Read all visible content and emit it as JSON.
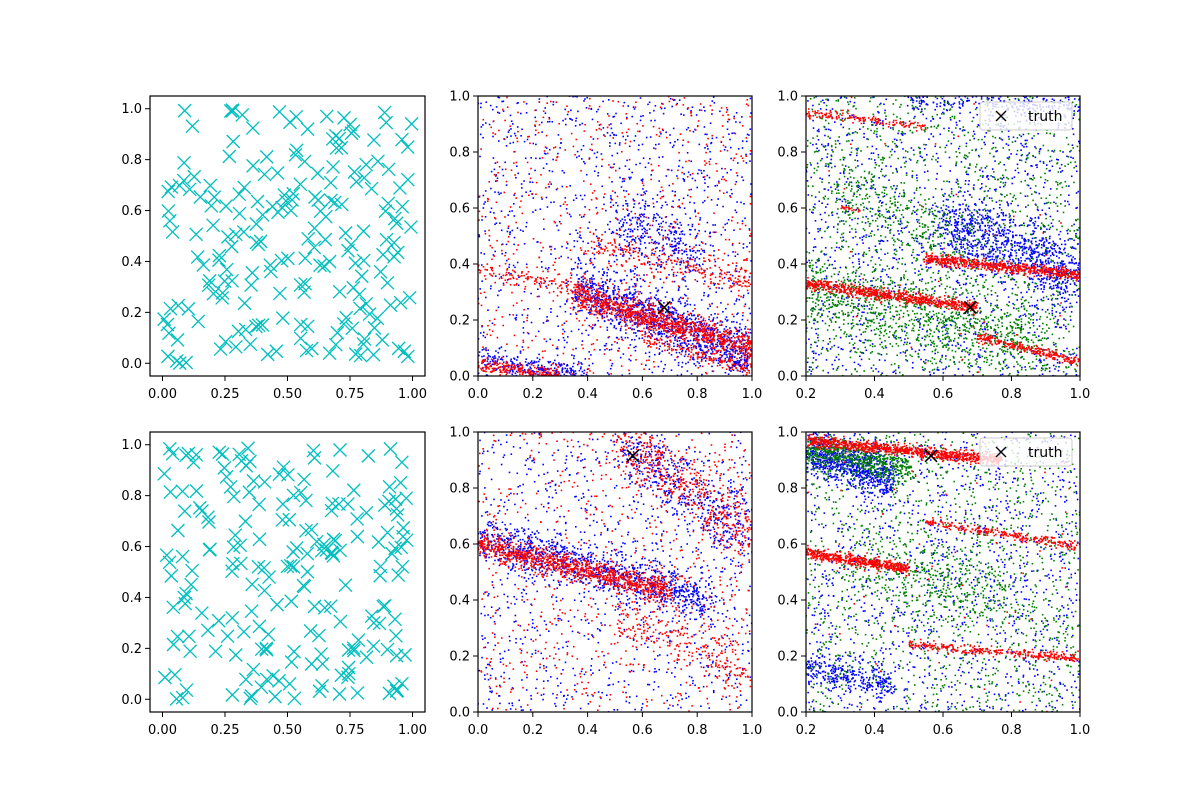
{
  "figure": {
    "background": "#ffffff"
  },
  "chart_data": [
    {
      "id": "top-left",
      "type": "scatter",
      "xlim": [
        -0.05,
        1.05
      ],
      "ylim": [
        -0.05,
        1.05
      ],
      "xticks": [
        "0.00",
        "0.25",
        "0.50",
        "0.75",
        "1.00"
      ],
      "xtick_values": [
        0,
        0.25,
        0.5,
        0.75,
        1.0
      ],
      "yticks": [
        "0.0",
        "0.2",
        "0.4",
        "0.6",
        "0.8",
        "1.0"
      ],
      "ytick_values": [
        0,
        0.2,
        0.4,
        0.6,
        0.8,
        1.0
      ],
      "grid": false,
      "points": {
        "count": 200,
        "distribution": "uniform",
        "marker": "x",
        "color": "#00bfbf",
        "seed": 11
      }
    },
    {
      "id": "top-middle",
      "type": "scatter",
      "xlim": [
        0,
        1
      ],
      "ylim": [
        0,
        1
      ],
      "xticks": [
        "0.0",
        "0.2",
        "0.4",
        "0.6",
        "0.8",
        "1.0"
      ],
      "xtick_values": [
        0,
        0.2,
        0.4,
        0.6,
        0.8,
        1.0
      ],
      "yticks": [
        "0.0",
        "0.2",
        "0.4",
        "0.6",
        "0.8",
        "1.0"
      ],
      "ytick_values": [
        0,
        0.2,
        0.4,
        0.6,
        0.8,
        1.0
      ],
      "grid": false,
      "series": [
        {
          "color": "#0000ff",
          "marker": "dot",
          "noise_count": 1100,
          "bands": [
            {
              "x0": 0.35,
              "y0": 0.32,
              "x1": 1.0,
              "y1": 0.07,
              "count": 1100,
              "spread": 0.05
            },
            {
              "x0": 0.5,
              "y0": 0.55,
              "x1": 0.8,
              "y1": 0.45,
              "count": 300,
              "spread": 0.06
            },
            {
              "x0": 0.0,
              "y0": 0.06,
              "x1": 0.4,
              "y1": 0.0,
              "count": 250,
              "spread": 0.02
            }
          ]
        },
        {
          "color": "#ff0000",
          "marker": "dot",
          "noise_count": 700,
          "bands": [
            {
              "x0": 0.35,
              "y0": 0.29,
              "x1": 1.0,
              "y1": 0.1,
              "count": 1000,
              "spread": 0.025
            },
            {
              "x0": 0.4,
              "y0": 0.47,
              "x1": 1.0,
              "y1": 0.34,
              "count": 250,
              "spread": 0.03
            },
            {
              "x0": 0.0,
              "y0": 0.38,
              "x1": 0.4,
              "y1": 0.3,
              "count": 120,
              "spread": 0.015
            },
            {
              "x0": 0.0,
              "y0": 0.04,
              "x1": 0.3,
              "y1": 0.0,
              "count": 200,
              "spread": 0.012
            },
            {
              "x0": 0.6,
              "y0": 0.14,
              "x1": 1.0,
              "y1": 0.02,
              "count": 160,
              "spread": 0.015
            }
          ]
        }
      ],
      "truth": {
        "x": 0.68,
        "y": 0.245,
        "marker": "x",
        "color": "#000000"
      }
    },
    {
      "id": "top-right",
      "type": "scatter",
      "xlim": [
        0.2,
        1.0
      ],
      "ylim": [
        0,
        1
      ],
      "xticks": [
        "0.2",
        "0.4",
        "0.6",
        "0.8",
        "1.0"
      ],
      "xtick_values": [
        0.2,
        0.4,
        0.6,
        0.8,
        1.0
      ],
      "yticks": [
        "0.0",
        "0.2",
        "0.4",
        "0.6",
        "0.8",
        "1.0"
      ],
      "ytick_values": [
        0,
        0.2,
        0.4,
        0.6,
        0.8,
        1.0
      ],
      "grid": false,
      "series": [
        {
          "color": "#0000ff",
          "marker": "dot",
          "noise_count": 1400,
          "bands": [
            {
              "x0": 0.6,
              "y0": 0.55,
              "x1": 1.0,
              "y1": 0.35,
              "count": 900,
              "spread": 0.06
            },
            {
              "x0": 0.5,
              "y0": 0.98,
              "x1": 1.0,
              "y1": 0.97,
              "count": 200,
              "spread": 0.02
            }
          ]
        },
        {
          "color": "#008000",
          "marker": "dot",
          "noise_count": 1300,
          "bands": [
            {
              "x0": 0.2,
              "y0": 0.3,
              "x1": 0.9,
              "y1": 0.12,
              "count": 900,
              "spread": 0.07
            },
            {
              "x0": 0.3,
              "y0": 0.7,
              "x1": 0.7,
              "y1": 0.4,
              "count": 300,
              "spread": 0.08
            }
          ]
        },
        {
          "color": "#ff0000",
          "marker": "dot",
          "noise_count": 40,
          "bands": [
            {
              "x0": 0.55,
              "y0": 0.42,
              "x1": 1.0,
              "y1": 0.36,
              "count": 600,
              "spread": 0.01
            },
            {
              "x0": 0.2,
              "y0": 0.33,
              "x1": 0.7,
              "y1": 0.245,
              "count": 700,
              "spread": 0.01
            },
            {
              "x0": 0.2,
              "y0": 0.94,
              "x1": 0.55,
              "y1": 0.89,
              "count": 150,
              "spread": 0.008
            },
            {
              "x0": 0.7,
              "y0": 0.14,
              "x1": 1.0,
              "y1": 0.05,
              "count": 250,
              "spread": 0.008
            },
            {
              "x0": 0.3,
              "y0": 0.6,
              "x1": 0.36,
              "y1": 0.59,
              "count": 20,
              "spread": 0.004
            }
          ]
        }
      ],
      "truth": {
        "x": 0.68,
        "y": 0.245,
        "marker": "x",
        "color": "#000000"
      },
      "legend": {
        "label": "truth",
        "position": "upper right"
      }
    },
    {
      "id": "bottom-left",
      "type": "scatter",
      "xlim": [
        -0.05,
        1.05
      ],
      "ylim": [
        -0.05,
        1.05
      ],
      "xticks": [
        "0.00",
        "0.25",
        "0.50",
        "0.75",
        "1.00"
      ],
      "xtick_values": [
        0,
        0.25,
        0.5,
        0.75,
        1.0
      ],
      "yticks": [
        "0.0",
        "0.2",
        "0.4",
        "0.6",
        "0.8",
        "1.0"
      ],
      "ytick_values": [
        0,
        0.2,
        0.4,
        0.6,
        0.8,
        1.0
      ],
      "grid": false,
      "points": {
        "count": 200,
        "distribution": "uniform",
        "marker": "x",
        "color": "#00bfbf",
        "seed": 29
      }
    },
    {
      "id": "bottom-middle",
      "type": "scatter",
      "xlim": [
        0,
        1
      ],
      "ylim": [
        0,
        1
      ],
      "xticks": [
        "0.0",
        "0.2",
        "0.4",
        "0.6",
        "0.8",
        "1.0"
      ],
      "xtick_values": [
        0,
        0.2,
        0.4,
        0.6,
        0.8,
        1.0
      ],
      "yticks": [
        "0.0",
        "0.2",
        "0.4",
        "0.6",
        "0.8",
        "1.0"
      ],
      "ytick_values": [
        0,
        0.2,
        0.4,
        0.6,
        0.8,
        1.0
      ],
      "grid": false,
      "series": [
        {
          "color": "#0000ff",
          "marker": "dot",
          "noise_count": 900,
          "bands": [
            {
              "x0": 0.0,
              "y0": 0.62,
              "x1": 0.85,
              "y1": 0.4,
              "count": 1000,
              "spread": 0.04
            },
            {
              "x0": 0.5,
              "y0": 0.98,
              "x1": 1.0,
              "y1": 0.62,
              "count": 500,
              "spread": 0.07
            }
          ]
        },
        {
          "color": "#ff0000",
          "marker": "dot",
          "noise_count": 700,
          "bands": [
            {
              "x0": 0.0,
              "y0": 0.6,
              "x1": 0.7,
              "y1": 0.43,
              "count": 1000,
              "spread": 0.022
            },
            {
              "x0": 0.5,
              "y0": 0.98,
              "x1": 1.0,
              "y1": 0.62,
              "count": 500,
              "spread": 0.06
            },
            {
              "x0": 0.5,
              "y0": 0.35,
              "x1": 1.0,
              "y1": 0.15,
              "count": 250,
              "spread": 0.05
            }
          ]
        }
      ],
      "truth": {
        "x": 0.565,
        "y": 0.915,
        "marker": "x",
        "color": "#000000"
      }
    },
    {
      "id": "bottom-right",
      "type": "scatter",
      "xlim": [
        0.2,
        1.0
      ],
      "ylim": [
        0,
        1
      ],
      "xticks": [
        "0.2",
        "0.4",
        "0.6",
        "0.8",
        "1.0"
      ],
      "xtick_values": [
        0.2,
        0.4,
        0.6,
        0.8,
        1.0
      ],
      "yticks": [
        "0.0",
        "0.2",
        "0.4",
        "0.6",
        "0.8",
        "1.0"
      ],
      "ytick_values": [
        0,
        0.2,
        0.4,
        0.6,
        0.8,
        1.0
      ],
      "grid": false,
      "series": [
        {
          "color": "#0000ff",
          "marker": "dot",
          "noise_count": 1300,
          "bands": [
            {
              "x0": 0.2,
              "y0": 0.93,
              "x1": 0.45,
              "y1": 0.83,
              "count": 800,
              "spread": 0.04
            },
            {
              "x0": 0.2,
              "y0": 0.16,
              "x1": 0.45,
              "y1": 0.1,
              "count": 300,
              "spread": 0.03
            }
          ]
        },
        {
          "color": "#008000",
          "marker": "dot",
          "noise_count": 1200,
          "bands": [
            {
              "x0": 0.2,
              "y0": 0.94,
              "x1": 0.5,
              "y1": 0.87,
              "count": 600,
              "spread": 0.03
            },
            {
              "x0": 0.35,
              "y0": 0.55,
              "x1": 0.8,
              "y1": 0.4,
              "count": 400,
              "spread": 0.07
            }
          ]
        },
        {
          "color": "#ff0000",
          "marker": "dot",
          "noise_count": 60,
          "bands": [
            {
              "x0": 0.2,
              "y0": 0.97,
              "x1": 0.77,
              "y1": 0.9,
              "count": 900,
              "spread": 0.01
            },
            {
              "x0": 0.2,
              "y0": 0.57,
              "x1": 0.5,
              "y1": 0.51,
              "count": 500,
              "spread": 0.01
            },
            {
              "x0": 0.55,
              "y0": 0.68,
              "x1": 1.0,
              "y1": 0.59,
              "count": 250,
              "spread": 0.008
            },
            {
              "x0": 0.5,
              "y0": 0.24,
              "x1": 1.0,
              "y1": 0.19,
              "count": 300,
              "spread": 0.008
            }
          ]
        }
      ],
      "truth": {
        "x": 0.565,
        "y": 0.915,
        "marker": "x",
        "color": "#000000"
      },
      "legend": {
        "label": "truth",
        "position": "upper right"
      }
    }
  ]
}
